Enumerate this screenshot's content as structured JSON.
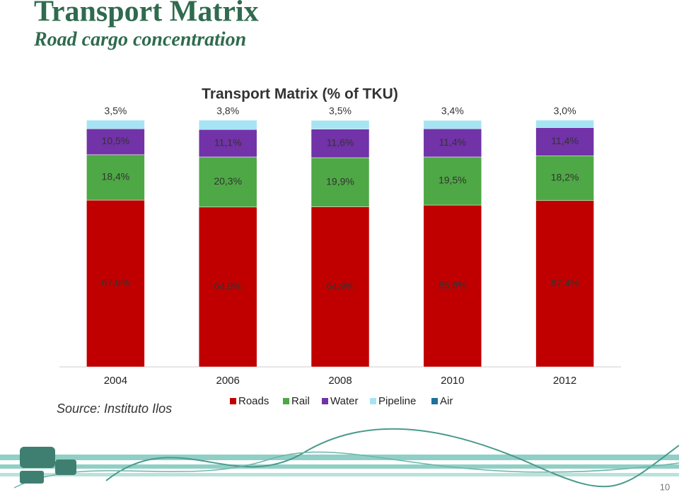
{
  "slide": {
    "title": "Transport Matrix",
    "subtitle": "Road cargo concentration",
    "source": "Source: Instituto Ilos",
    "page_number": "10"
  },
  "chart_data": {
    "type": "stacked_bar",
    "title": "Transport Matrix (% of TKU)",
    "categories": [
      "2004",
      "2006",
      "2008",
      "2010",
      "2012"
    ],
    "ylim": [
      0,
      100
    ],
    "series": [
      {
        "name": "Roads",
        "color": "#c00000",
        "values": [
          67.6,
          64.8,
          64.9,
          65.6,
          67.4
        ],
        "value_labels": [
          "67,6%",
          "64,8%",
          "64,9%",
          "65,6%",
          "67,4%"
        ]
      },
      {
        "name": "Rail",
        "color": "#4ea845",
        "values": [
          18.4,
          20.3,
          19.9,
          19.5,
          18.2
        ],
        "value_labels": [
          "18,4%",
          "20,3%",
          "19,9%",
          "19,5%",
          "18,2%"
        ]
      },
      {
        "name": "Water",
        "color": "#7232a8",
        "values": [
          10.5,
          11.1,
          11.6,
          11.4,
          11.4
        ],
        "value_labels": [
          "10,5%",
          "11,1%",
          "11,6%",
          "11,4%",
          "11,4%"
        ]
      },
      {
        "name": "Pipeline",
        "color": "#a6e4f4",
        "values": [
          3.5,
          3.8,
          3.5,
          3.4,
          3.0
        ],
        "value_labels": [
          "3,5%",
          "3,8%",
          "3,5%",
          "3,4%",
          "3,0%"
        ]
      },
      {
        "name": "Air",
        "color": "#1f6f9f",
        "values": [
          0,
          0,
          0,
          0,
          0
        ]
      }
    ]
  }
}
